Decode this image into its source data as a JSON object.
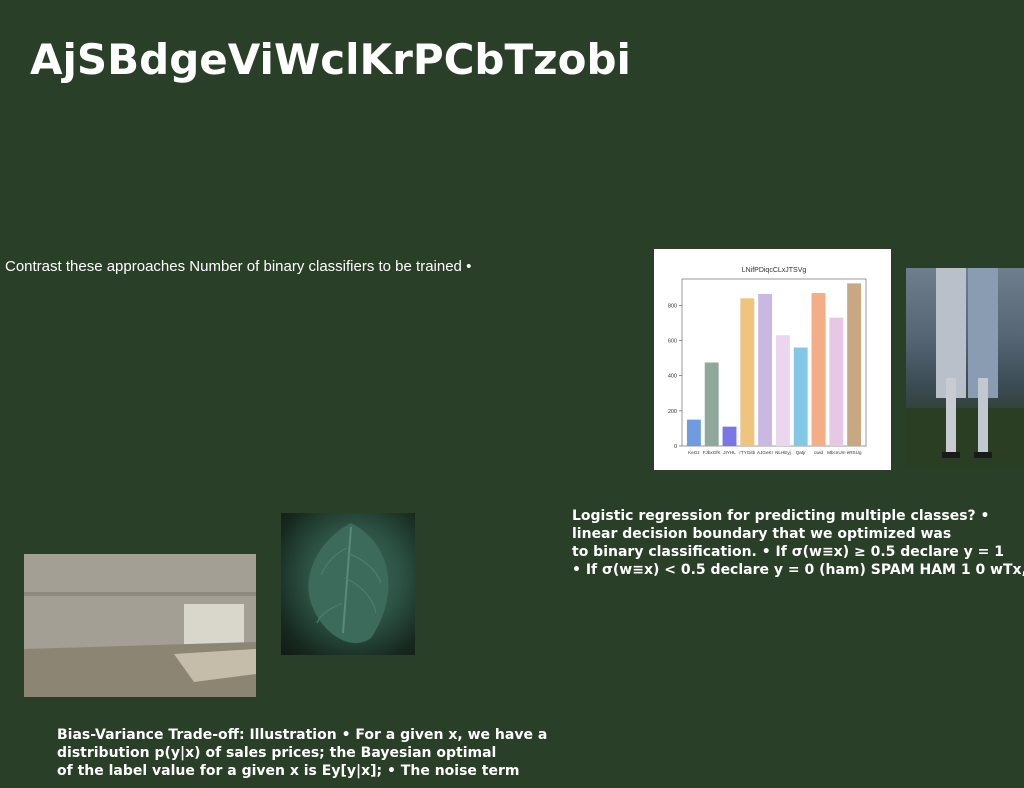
{
  "title": "AjSBdgeViWclKrPCbTzobi",
  "subtitle": "Contrast these approaches Number of binary classifiers to be trained •",
  "right_text": {
    "lines": [
      "Logistic regression for predicting multiple classes? •",
      "linear decision boundary that we optimized was",
      "to binary classification. • If σ(w≡x) ≥ 0.5 declare y = 1",
      "• If σ(w≡x) < 0.5 declare y = 0 (ham) SPAM HAM 1 0 wTx,"
    ]
  },
  "bottom_text": {
    "lines": [
      "Bias-Variance Trade-off: Illustration • For a given x, we have a",
      "distribution p(y|x) of sales prices; the Bayesian optimal",
      "of the label value for a given x is Ey[y|x]; • The noise term"
    ]
  },
  "chart_data": {
    "type": "bar",
    "title": "LNifPDiqcCLxJTSVg",
    "categories": [
      "KeGz",
      "FJbxGfK",
      "JIYHL",
      "rTYGitb",
      "AJGeKr",
      "NLHEyj",
      "Qatjr",
      "cwid",
      "MbcnUm",
      "eRSUg"
    ],
    "values": [
      150,
      475,
      110,
      840,
      865,
      630,
      560,
      870,
      730,
      925
    ],
    "colors": [
      "#6f9be0",
      "#8fa89c",
      "#7b76e6",
      "#efc47d",
      "#c9b8e2",
      "#ecd6ee",
      "#82c8e4",
      "#f4ad84",
      "#e7c8e4",
      "#c8a882"
    ],
    "ylim": [
      0,
      950
    ],
    "yticks": [
      0,
      200,
      400,
      600,
      800
    ],
    "xlabel": "",
    "ylabel": ""
  },
  "images": {
    "legs": "photo of two people standing on grass",
    "room": "photo of sunlit concrete room",
    "leaf": "photo of green hosta leaf"
  }
}
